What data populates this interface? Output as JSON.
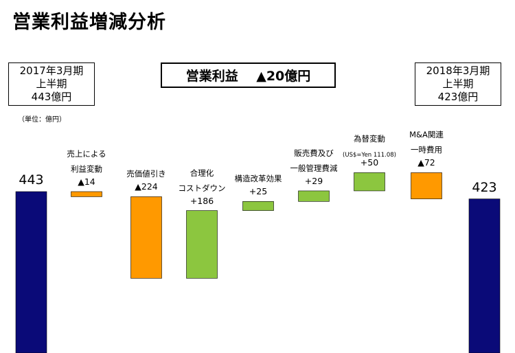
{
  "title": "営業利益増減分析",
  "summary": {
    "label": "営業利益",
    "value": "▲20億円"
  },
  "start_box": {
    "line1": "2017年3月期",
    "line2": "上半期",
    "line3": "443億円"
  },
  "end_box": {
    "line1": "2018年3月期",
    "line2": "上半期",
    "line3": "423億円"
  },
  "unit_note": "（単位：億円）",
  "colors": {
    "total": "#0a0a78",
    "decrease": "#ff9900",
    "increase": "#8cc63f"
  },
  "chart_data": {
    "type": "bar",
    "subtype": "waterfall",
    "title": "営業利益増減分析",
    "unit": "億円",
    "start": {
      "label": "443",
      "value": 443
    },
    "end": {
      "label": "423",
      "value": 423
    },
    "steps": [
      {
        "label_lines": [
          "売上による",
          "利益変動"
        ],
        "value_label": "▲14",
        "value": -14
      },
      {
        "label_lines": [
          "売価値引き"
        ],
        "value_label": "▲224",
        "value": -224
      },
      {
        "label_lines": [
          "合理化",
          "コストダウン"
        ],
        "value_label": "+186",
        "value": 186
      },
      {
        "label_lines": [
          "構造改革効果"
        ],
        "value_label": "+25",
        "value": 25
      },
      {
        "label_lines": [
          "販売費及び",
          "一般管理費減"
        ],
        "value_label": "+29",
        "value": 29
      },
      {
        "label_lines": [
          "為替変動"
        ],
        "sub_label": "(US$=Yen 111.08)",
        "value_label": "+50",
        "value": 50
      },
      {
        "label_lines": [
          "M&A関連",
          "一時費用"
        ],
        "value_label": "▲72",
        "value": -72
      }
    ]
  }
}
